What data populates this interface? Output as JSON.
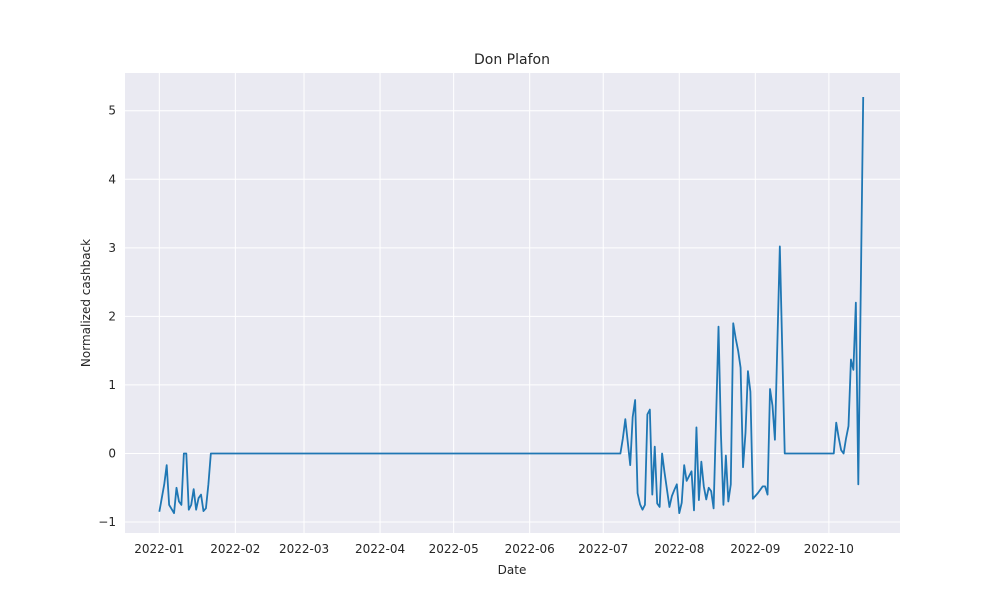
{
  "chart_data": {
    "type": "line",
    "title": "Don Plafon",
    "xlabel": "Date",
    "ylabel": "Normalized cashback",
    "x_tick_labels": [
      "2022-01",
      "2022-02",
      "2022-03",
      "2022-04",
      "2022-05",
      "2022-06",
      "2022-07",
      "2022-08",
      "2022-09",
      "2022-10"
    ],
    "y_tick_labels": [
      "−1",
      "0",
      "1",
      "2",
      "3",
      "4",
      "5"
    ],
    "y_ticks": [
      -1,
      0,
      1,
      2,
      3,
      4,
      5
    ],
    "xlim": [
      "2021-12-18",
      "2022-10-30"
    ],
    "ylim": [
      -1.16,
      5.55
    ],
    "grid": true,
    "background": "#eaeaf2",
    "line_color": "#1f77b4",
    "series": [
      {
        "points": [
          [
            "2022-01-01",
            -0.85
          ],
          [
            "2022-01-03",
            -0.45
          ],
          [
            "2022-01-04",
            -0.17
          ],
          [
            "2022-01-05",
            -0.75
          ],
          [
            "2022-01-07",
            -0.87
          ],
          [
            "2022-01-08",
            -0.5
          ],
          [
            "2022-01-09",
            -0.7
          ],
          [
            "2022-01-10",
            -0.75
          ],
          [
            "2022-01-11",
            0.0
          ],
          [
            "2022-01-12",
            0.0
          ],
          [
            "2022-01-13",
            -0.82
          ],
          [
            "2022-01-14",
            -0.75
          ],
          [
            "2022-01-15",
            -0.52
          ],
          [
            "2022-01-16",
            -0.82
          ],
          [
            "2022-01-17",
            -0.65
          ],
          [
            "2022-01-18",
            -0.6
          ],
          [
            "2022-01-19",
            -0.84
          ],
          [
            "2022-01-20",
            -0.8
          ],
          [
            "2022-01-21",
            -0.45
          ],
          [
            "2022-01-22",
            0.0
          ],
          [
            "2022-07-08",
            0.0
          ],
          [
            "2022-07-09",
            0.22
          ],
          [
            "2022-07-10",
            0.5
          ],
          [
            "2022-07-12",
            -0.17
          ],
          [
            "2022-07-13",
            0.53
          ],
          [
            "2022-07-14",
            0.78
          ],
          [
            "2022-07-15",
            -0.58
          ],
          [
            "2022-07-16",
            -0.74
          ],
          [
            "2022-07-17",
            -0.82
          ],
          [
            "2022-07-18",
            -0.75
          ],
          [
            "2022-07-19",
            0.57
          ],
          [
            "2022-07-20",
            0.64
          ],
          [
            "2022-07-21",
            -0.6
          ],
          [
            "2022-07-22",
            0.1
          ],
          [
            "2022-07-23",
            -0.73
          ],
          [
            "2022-07-24",
            -0.78
          ],
          [
            "2022-07-25",
            0.0
          ],
          [
            "2022-07-26",
            -0.28
          ],
          [
            "2022-07-28",
            -0.78
          ],
          [
            "2022-07-29",
            -0.62
          ],
          [
            "2022-07-30",
            -0.53
          ],
          [
            "2022-07-31",
            -0.45
          ],
          [
            "2022-08-01",
            -0.87
          ],
          [
            "2022-08-02",
            -0.72
          ],
          [
            "2022-08-03",
            -0.17
          ],
          [
            "2022-08-04",
            -0.4
          ],
          [
            "2022-08-06",
            -0.26
          ],
          [
            "2022-08-07",
            -0.83
          ],
          [
            "2022-08-08",
            0.38
          ],
          [
            "2022-08-09",
            -0.68
          ],
          [
            "2022-08-10",
            -0.12
          ],
          [
            "2022-08-11",
            -0.48
          ],
          [
            "2022-08-12",
            -0.67
          ],
          [
            "2022-08-13",
            -0.5
          ],
          [
            "2022-08-14",
            -0.55
          ],
          [
            "2022-08-15",
            -0.8
          ],
          [
            "2022-08-16",
            0.5
          ],
          [
            "2022-08-17",
            1.85
          ],
          [
            "2022-08-18",
            0.27
          ],
          [
            "2022-08-19",
            -0.75
          ],
          [
            "2022-08-20",
            -0.03
          ],
          [
            "2022-08-21",
            -0.7
          ],
          [
            "2022-08-22",
            -0.45
          ],
          [
            "2022-08-23",
            1.9
          ],
          [
            "2022-08-24",
            1.68
          ],
          [
            "2022-08-25",
            1.5
          ],
          [
            "2022-08-26",
            1.25
          ],
          [
            "2022-08-27",
            -0.2
          ],
          [
            "2022-08-28",
            0.3
          ],
          [
            "2022-08-29",
            1.2
          ],
          [
            "2022-08-30",
            0.9
          ],
          [
            "2022-08-31",
            -0.66
          ],
          [
            "2022-09-02",
            -0.58
          ],
          [
            "2022-09-04",
            -0.48
          ],
          [
            "2022-09-05",
            -0.48
          ],
          [
            "2022-09-06",
            -0.6
          ],
          [
            "2022-09-07",
            0.94
          ],
          [
            "2022-09-08",
            0.7
          ],
          [
            "2022-09-09",
            0.2
          ],
          [
            "2022-09-11",
            3.02
          ],
          [
            "2022-09-12",
            1.5
          ],
          [
            "2022-09-13",
            0.0
          ],
          [
            "2022-10-03",
            0.0
          ],
          [
            "2022-10-04",
            0.45
          ],
          [
            "2022-10-05",
            0.23
          ],
          [
            "2022-10-06",
            0.05
          ],
          [
            "2022-10-07",
            0.0
          ],
          [
            "2022-10-08",
            0.22
          ],
          [
            "2022-10-09",
            0.4
          ],
          [
            "2022-10-10",
            1.37
          ],
          [
            "2022-10-11",
            1.22
          ],
          [
            "2022-10-12",
            2.2
          ],
          [
            "2022-10-13",
            -0.45
          ],
          [
            "2022-10-15",
            5.2
          ]
        ]
      }
    ]
  }
}
